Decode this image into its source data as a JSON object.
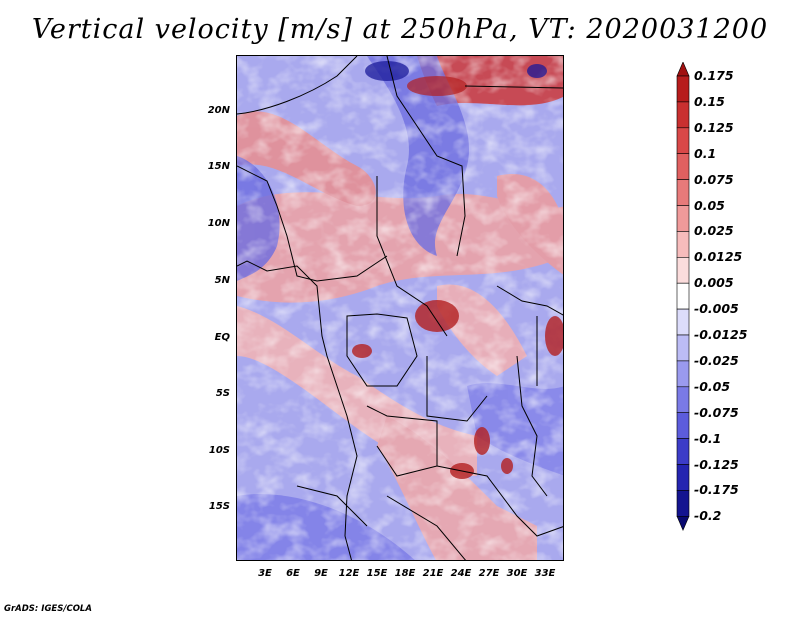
{
  "title": "Vertical velocity [m/s] at 250hPa, VT: 2020031200",
  "map": {
    "variable": "Vertical velocity",
    "units": "m/s",
    "level": "250hPa",
    "valid_time": "2020031200",
    "lat_labels": [
      "20N",
      "15N",
      "10N",
      "5N",
      "EQ",
      "5S",
      "10S",
      "15S"
    ],
    "lon_labels": [
      "3E",
      "6E",
      "9E",
      "12E",
      "15E",
      "18E",
      "21E",
      "24E",
      "27E",
      "30E",
      "33E"
    ]
  },
  "colorbar": {
    "labels": [
      "0.175",
      "0.15",
      "0.125",
      "0.1",
      "0.075",
      "0.05",
      "0.025",
      "0.0125",
      "0.005",
      "-0.005",
      "-0.0125",
      "-0.025",
      "-0.05",
      "-0.075",
      "-0.1",
      "-0.125",
      "-0.175",
      "-0.2"
    ],
    "colors": [
      "#a01010",
      "#b71c1c",
      "#c93030",
      "#d94848",
      "#e06060",
      "#e87a7a",
      "#f09a9a",
      "#f7bcbc",
      "#fbdcdc",
      "#ffffff",
      "#dcdcfb",
      "#bcbcf5",
      "#9a9aee",
      "#7a7ae6",
      "#5c5cdc",
      "#3c3cc8",
      "#2424b0",
      "#141490",
      "#0a0a70"
    ]
  },
  "credit": "GrADS: IGES/COLA"
}
